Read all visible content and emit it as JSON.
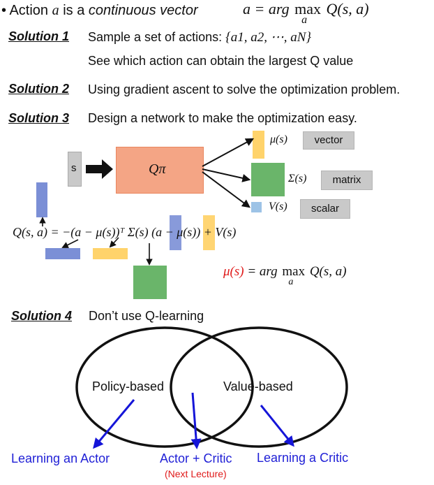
{
  "header": {
    "bullet": "•",
    "text_before": "Action",
    "var_a": "a",
    "text_is": "is a",
    "continuous": "continuous vector",
    "formula_lhs": "a = arg",
    "formula_max": "max",
    "formula_sub": "a",
    "formula_rhs": "Q(s, a)"
  },
  "solutions": [
    {
      "label": "Solution 1",
      "lines": [
        "Sample a set of actions:",
        "See which action can obtain the largest Q value"
      ],
      "set_math": "{a1, a2, ⋯, aN}"
    },
    {
      "label": "Solution 2",
      "lines": [
        "Using gradient ascent to solve the optimization problem."
      ]
    },
    {
      "label": "Solution 3",
      "lines": [
        "Design a network to make the optimization easy."
      ]
    },
    {
      "label": "Solution 4",
      "lines": [
        "Don’t use Q-learning"
      ]
    }
  ],
  "network": {
    "input_label": "s",
    "network_label": "Qπ",
    "outputs": [
      {
        "symbol": "μ(s)",
        "tag": "vector"
      },
      {
        "symbol": "Σ(s)",
        "tag": "matrix"
      },
      {
        "symbol": "V(s)",
        "tag": "scalar"
      }
    ]
  },
  "equation": {
    "text": "Q(s, a) = −(a − μ(s))ᵀ Σ(s) (a − μ(s)) + V(s)",
    "result_red": "μ(s)",
    "result_rest": "= arg",
    "result_max": "max",
    "result_sub": "a",
    "result_tail": "Q(s, a)"
  },
  "venn": {
    "left": "Policy-based",
    "right": "Value-based",
    "bottom_left": "Learning an Actor",
    "bottom_middle": "Actor + Critic",
    "bottom_middle_note": "(Next Lecture)",
    "bottom_right": "Learning a Critic"
  },
  "colors": {
    "network_fill": "#f4a585",
    "yellow": "#ffd36b",
    "green": "#6ab56a",
    "blue": "#7b8fd6",
    "light_blue": "#9dc3e6",
    "gray": "#c9c9c9",
    "arrow_blue": "#1515d8",
    "red": "#e01b1b"
  }
}
